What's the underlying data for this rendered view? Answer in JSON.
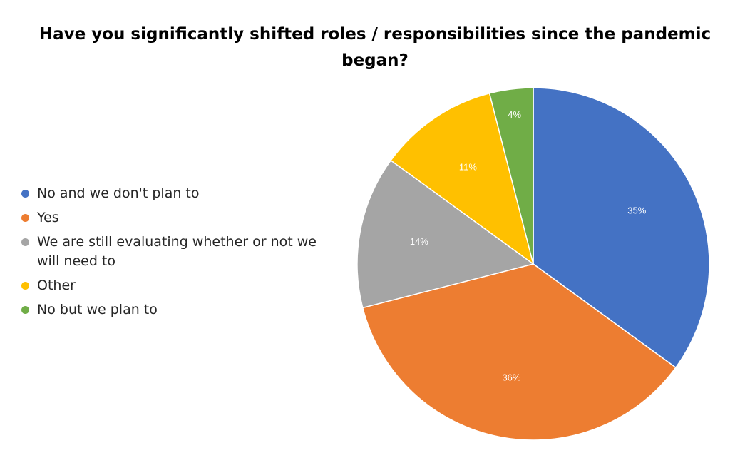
{
  "chart_data": {
    "type": "pie",
    "title": "Have you significantly shifted roles / responsibilities since the pandemic began?",
    "legend_position": "left",
    "slices": [
      {
        "label": "No and we don't plan to",
        "value": 35,
        "display": "35%",
        "color": "#4472C4"
      },
      {
        "label": "Yes",
        "value": 36,
        "display": "36%",
        "color": "#ED7D31"
      },
      {
        "label": "We are still evaluating whether or not we will need to",
        "value": 14,
        "display": "14%",
        "color": "#A5A5A5"
      },
      {
        "label": "Other",
        "value": 11,
        "display": "11%",
        "color": "#FFC000"
      },
      {
        "label": "No but we plan to",
        "value": 4,
        "display": "4%",
        "color": "#70AD47"
      }
    ]
  }
}
